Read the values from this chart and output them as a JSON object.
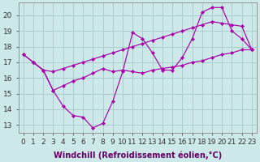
{
  "background_color": "#cce8e8",
  "grid_color": "#aacccc",
  "line_color": "#aa00aa",
  "marker_color": "#aa00aa",
  "xlabel": "Windchill (Refroidissement éolien,°C)",
  "xlabel_color": "#660066",
  "ylabel_ticks": [
    13,
    14,
    15,
    16,
    17,
    18,
    19,
    20
  ],
  "xlim": [
    -0.5,
    23.5
  ],
  "ylim": [
    12.5,
    20.8
  ],
  "series1_x": [
    0,
    1,
    2,
    3,
    4,
    5,
    6,
    7,
    8,
    9,
    10,
    11,
    12,
    13,
    14,
    15,
    16,
    17,
    18,
    19,
    20,
    21,
    22,
    23
  ],
  "series1_y": [
    17.5,
    17.0,
    16.5,
    16.4,
    16.6,
    16.8,
    17.0,
    17.2,
    17.4,
    17.6,
    17.8,
    18.0,
    18.2,
    18.4,
    18.6,
    18.8,
    19.0,
    19.2,
    19.4,
    19.6,
    19.5,
    19.4,
    19.3,
    17.8
  ],
  "series2_x": [
    0,
    1,
    2,
    3,
    4,
    5,
    6,
    7,
    8,
    9,
    10,
    11,
    12,
    13,
    14,
    15,
    16,
    17,
    18,
    19,
    20,
    21,
    22,
    23
  ],
  "series2_y": [
    17.5,
    17.0,
    16.5,
    15.2,
    14.2,
    13.6,
    13.5,
    12.8,
    13.1,
    14.5,
    16.4,
    18.9,
    18.5,
    17.6,
    16.5,
    16.5,
    17.3,
    18.5,
    20.2,
    20.5,
    20.5,
    19.0,
    18.5,
    17.8
  ],
  "series3_x": [
    1,
    2,
    3,
    4,
    5,
    6,
    7,
    8,
    9,
    10,
    11,
    12,
    13,
    14,
    15,
    16,
    17,
    18,
    19,
    20,
    21,
    22,
    23
  ],
  "series3_y": [
    17.0,
    16.5,
    15.2,
    15.5,
    15.8,
    16.0,
    16.3,
    16.6,
    16.4,
    16.5,
    16.4,
    16.3,
    16.5,
    16.6,
    16.7,
    16.8,
    17.0,
    17.1,
    17.3,
    17.5,
    17.6,
    17.8,
    17.8
  ],
  "xlabel_fontsize": 7,
  "tick_fontsize": 6.5
}
